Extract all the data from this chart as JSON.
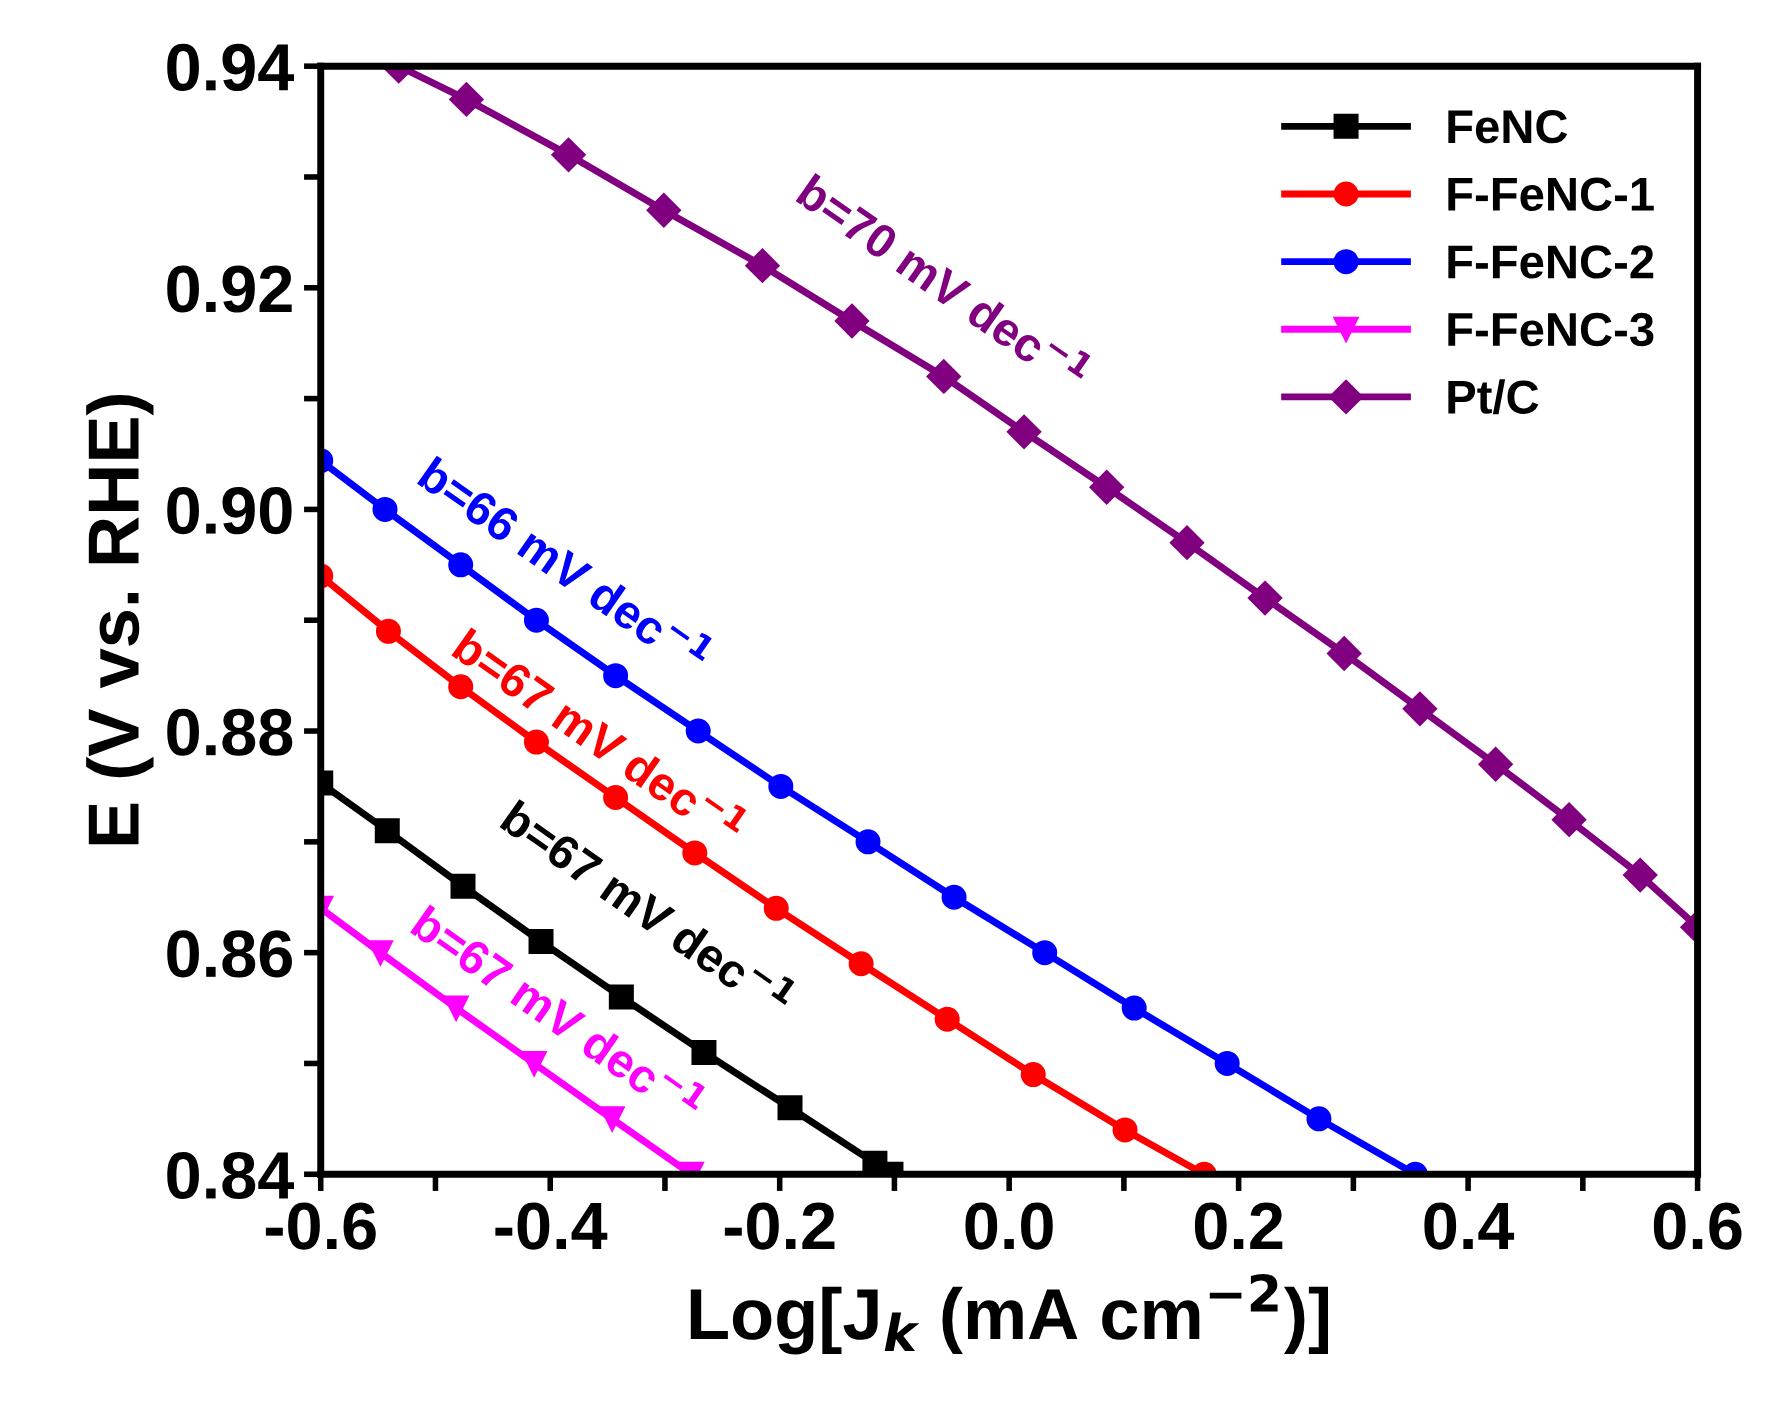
{
  "chart_data": {
    "type": "line",
    "xlabel": "Log[J$_{k}$ (mA cm$^{−2}$)]",
    "ylabel": "E (V vs. RHE)",
    "xlim": [
      -0.6,
      0.6
    ],
    "ylim": [
      0.84,
      0.94
    ],
    "xticks": [
      {
        "value": -0.6,
        "label": "-0.6"
      },
      {
        "value": -0.5,
        "label": null
      },
      {
        "value": -0.4,
        "label": "-0.4"
      },
      {
        "value": -0.3,
        "label": null
      },
      {
        "value": -0.2,
        "label": "-0.2"
      },
      {
        "value": -0.1,
        "label": null
      },
      {
        "value": 0.0,
        "label": "0.0"
      },
      {
        "value": 0.1,
        "label": null
      },
      {
        "value": 0.2,
        "label": "0.2"
      },
      {
        "value": 0.3,
        "label": null
      },
      {
        "value": 0.4,
        "label": "0.4"
      },
      {
        "value": 0.5,
        "label": null
      },
      {
        "value": 0.6,
        "label": "0.6"
      }
    ],
    "yticks": [
      {
        "value": 0.84,
        "label": "0.84"
      },
      {
        "value": 0.85,
        "label": null
      },
      {
        "value": 0.86,
        "label": "0.86"
      },
      {
        "value": 0.87,
        "label": null
      },
      {
        "value": 0.88,
        "label": "0.88"
      },
      {
        "value": 0.89,
        "label": null
      },
      {
        "value": 0.9,
        "label": "0.90"
      },
      {
        "value": 0.91,
        "label": null
      },
      {
        "value": 0.92,
        "label": "0.92"
      },
      {
        "value": 0.93,
        "label": null
      },
      {
        "value": 0.94,
        "label": "0.94"
      }
    ],
    "grid": false,
    "legend": "top right",
    "line_style": "solid",
    "series": [
      {
        "name": "FeNC",
        "color": "#000000",
        "marker": "square",
        "x": [
          -0.6,
          -0.542,
          -0.476,
          -0.408,
          -0.338,
          -0.266,
          -0.191,
          -0.117,
          -0.103
        ],
        "values": [
          0.8753,
          0.871,
          0.866,
          0.861,
          0.856,
          0.851,
          0.846,
          0.841,
          0.84
        ]
      },
      {
        "name": "F-FeNC-1",
        "color": "#ff0000",
        "marker": "circle",
        "x": [
          -0.6,
          -0.541,
          -0.478,
          -0.412,
          -0.343,
          -0.274,
          -0.203,
          -0.129,
          -0.054,
          0.021,
          0.101,
          0.17
        ],
        "values": [
          0.894,
          0.889,
          0.884,
          0.879,
          0.874,
          0.869,
          0.864,
          0.859,
          0.854,
          0.849,
          0.844,
          0.84
        ]
      },
      {
        "name": "F-FeNC-2",
        "color": "#0000ff",
        "marker": "circle",
        "x": [
          -0.6,
          -0.544,
          -0.478,
          -0.412,
          -0.343,
          -0.271,
          -0.199,
          -0.123,
          -0.048,
          0.031,
          0.109,
          0.19,
          0.27,
          0.354
        ],
        "values": [
          0.9044,
          0.9,
          0.895,
          0.89,
          0.885,
          0.88,
          0.875,
          0.87,
          0.865,
          0.86,
          0.855,
          0.85,
          0.845,
          0.84
        ]
      },
      {
        "name": "F-FeNC-3",
        "color": "#ff00ff",
        "marker": "triangle",
        "x": [
          -0.6,
          -0.548,
          -0.482,
          -0.414,
          -0.346,
          -0.277
        ],
        "values": [
          0.864,
          0.86,
          0.855,
          0.85,
          0.845,
          0.84
        ]
      },
      {
        "name": "Pt/C",
        "color": "#800080",
        "marker": "diamond",
        "x": [
          -0.532,
          -0.473,
          -0.384,
          -0.301,
          -0.215,
          -0.137,
          -0.057,
          0.013,
          0.085,
          0.155,
          0.223,
          0.292,
          0.358,
          0.424,
          0.488,
          0.55,
          0.6
        ],
        "values": [
          0.94,
          0.937,
          0.932,
          0.927,
          0.922,
          0.917,
          0.912,
          0.907,
          0.902,
          0.897,
          0.892,
          0.887,
          0.882,
          0.877,
          0.872,
          0.867,
          0.8623
        ]
      }
    ],
    "annotations": [
      "b=70 mV dec$^{−1}$",
      "b=66 mV dec$^{−1}$",
      "b=67 mV dec$^{−1}$",
      "b=67 mV dec$^{−1}$",
      "b=67 mV dec$^{−1}$"
    ]
  }
}
